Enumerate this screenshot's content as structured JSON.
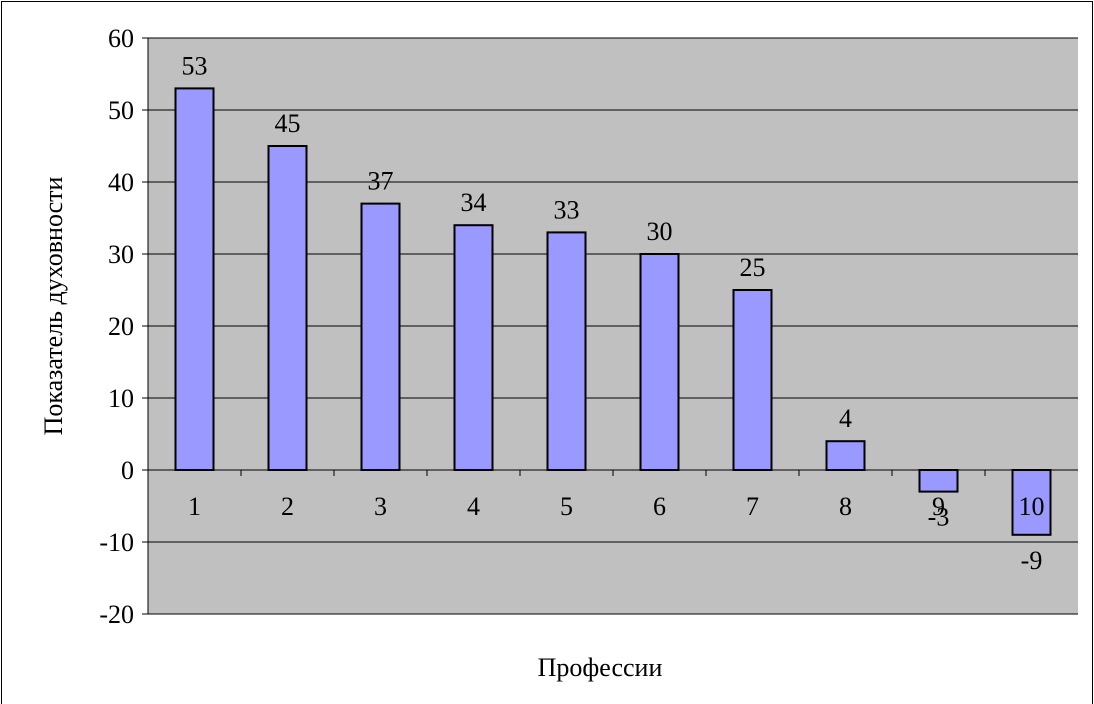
{
  "chart_data": {
    "type": "bar",
    "title": "",
    "xlabel": "Профессии",
    "ylabel": "Показатель духовности",
    "categories": [
      "1",
      "2",
      "3",
      "4",
      "5",
      "6",
      "7",
      "8",
      "9",
      "10"
    ],
    "values": [
      53,
      45,
      37,
      34,
      33,
      30,
      25,
      4,
      -3,
      -9
    ],
    "data_labels": [
      "53",
      "45",
      "37",
      "34",
      "33",
      "30",
      "25",
      "4",
      "-3",
      "-9"
    ],
    "ylim": [
      -20,
      60
    ],
    "yticks": [
      "-20",
      "-10",
      "0",
      "10",
      "20",
      "30",
      "40",
      "50",
      "60"
    ],
    "grid": true,
    "legend": "none",
    "colors": {
      "bar_fill": "#9999ff",
      "bar_stroke": "#000000",
      "plot_background": "#c0c0c0",
      "page_background": "#ffffff"
    }
  }
}
